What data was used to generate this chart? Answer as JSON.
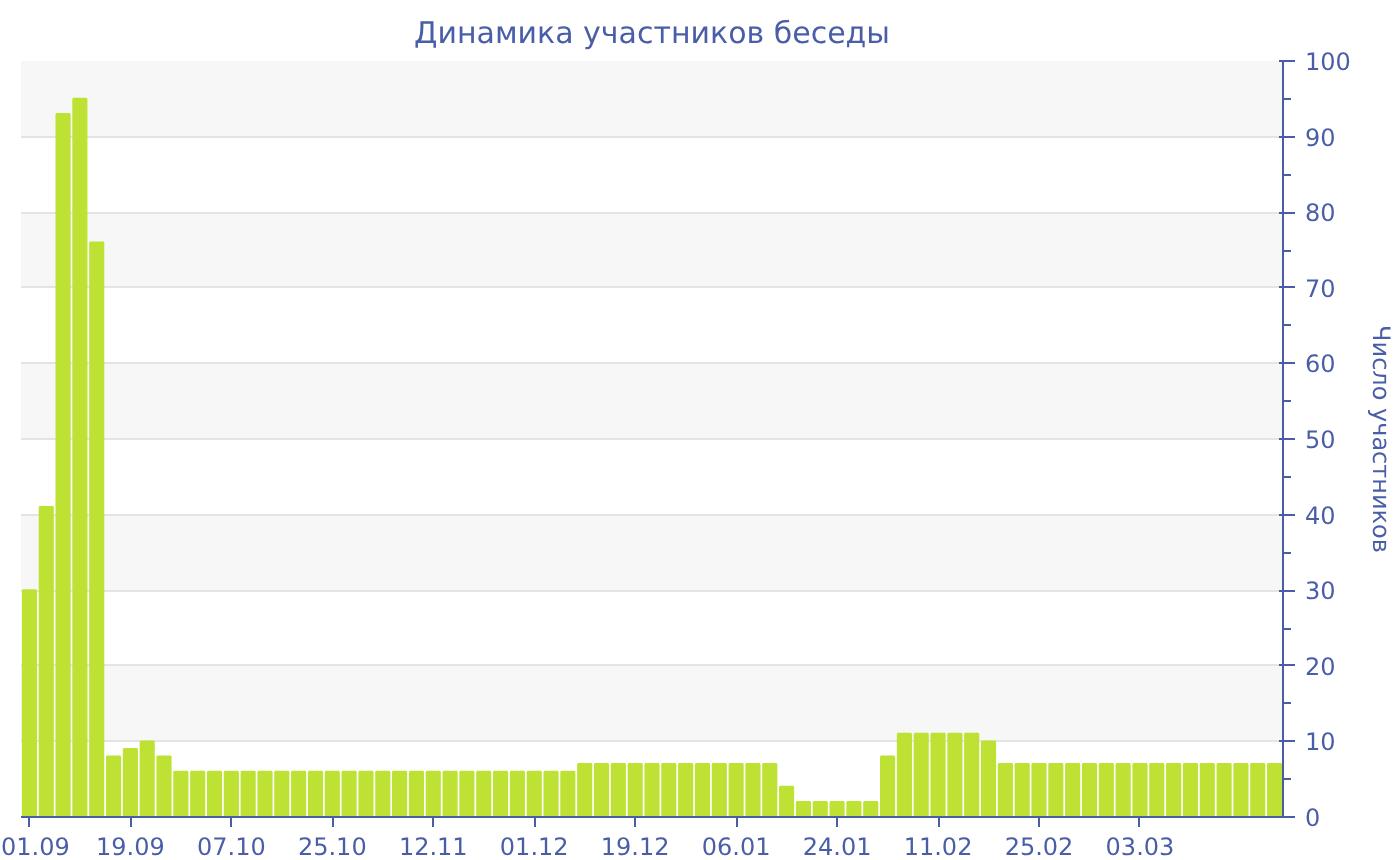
{
  "chart_data": {
    "type": "bar",
    "title": "Динамика участников беседы",
    "ylabel": "Число участников",
    "categories": [
      "01.09",
      null,
      null,
      null,
      null,
      null,
      "19.09",
      null,
      null,
      null,
      null,
      null,
      "07.10",
      null,
      null,
      null,
      null,
      null,
      "25.10",
      null,
      null,
      null,
      null,
      null,
      "12.11",
      null,
      null,
      null,
      null,
      null,
      "01.12",
      null,
      null,
      null,
      null,
      null,
      "19.12",
      null,
      null,
      null,
      null,
      null,
      "06.01",
      null,
      null,
      null,
      null,
      null,
      "24.01",
      null,
      null,
      null,
      null,
      null,
      "11.02",
      null,
      null,
      null,
      null,
      null,
      "25.02",
      null,
      null,
      null,
      null,
      null,
      "03.03",
      null,
      null,
      null,
      null,
      null,
      null,
      null,
      null
    ],
    "values": [
      30,
      41,
      93,
      95,
      76,
      8,
      9,
      10,
      8,
      6,
      6,
      6,
      6,
      6,
      6,
      6,
      6,
      6,
      6,
      6,
      6,
      6,
      6,
      6,
      6,
      6,
      6,
      6,
      6,
      6,
      6,
      6,
      6,
      7,
      7,
      7,
      7,
      7,
      7,
      7,
      7,
      7,
      7,
      7,
      7,
      4,
      2,
      2,
      2,
      2,
      2,
      8,
      11,
      11,
      11,
      11,
      11,
      10,
      7,
      7,
      7,
      7,
      7,
      7,
      7,
      7,
      7,
      7,
      7,
      7,
      7,
      7,
      7,
      7,
      7
    ],
    "color": "#bde234",
    "ylim": [
      0,
      100
    ],
    "yticks": [
      0,
      10,
      20,
      30,
      40,
      50,
      60,
      70,
      80,
      90,
      100
    ],
    "grid": "y"
  }
}
